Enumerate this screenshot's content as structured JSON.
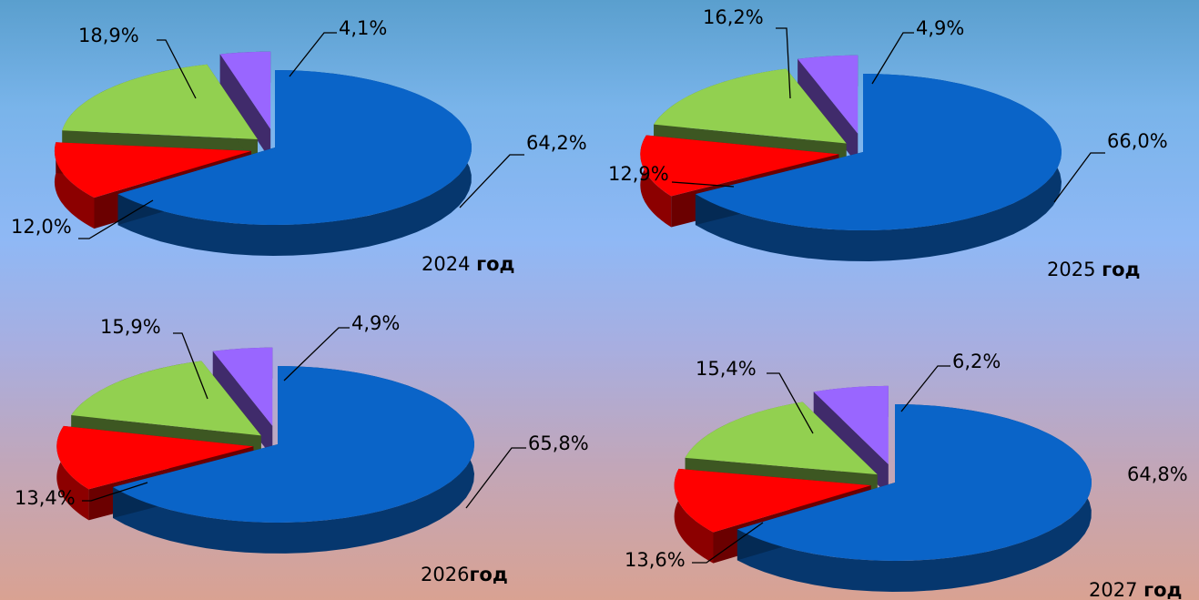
{
  "chart_data": [
    {
      "type": "pie",
      "year_label": "2024",
      "year_suffix": "год",
      "slices": [
        {
          "value": 64.2,
          "label": "64,2%",
          "color": "#0a64c8"
        },
        {
          "value": 12.0,
          "label": "12,0%",
          "color": "#ff0000"
        },
        {
          "value": 18.9,
          "label": "18,9%",
          "color": "#92d050"
        },
        {
          "value": 4.1,
          "label": "4,1%",
          "color": "#9966ff"
        }
      ]
    },
    {
      "type": "pie",
      "year_label": "2025",
      "year_suffix": "год",
      "slices": [
        {
          "value": 66.0,
          "label": "66,0%",
          "color": "#0a64c8"
        },
        {
          "value": 12.9,
          "label": "12,9%",
          "color": "#ff0000"
        },
        {
          "value": 16.2,
          "label": "16,2%",
          "color": "#92d050"
        },
        {
          "value": 4.9,
          "label": "4,9%",
          "color": "#9966ff"
        }
      ]
    },
    {
      "type": "pie",
      "year_label": "2026",
      "year_suffix": "год",
      "slices": [
        {
          "value": 65.8,
          "label": "65,8%",
          "color": "#0a64c8"
        },
        {
          "value": 13.4,
          "label": "13,4%",
          "color": "#ff0000"
        },
        {
          "value": 15.9,
          "label": "15,9%",
          "color": "#92d050"
        },
        {
          "value": 4.9,
          "label": "4,9%",
          "color": "#9966ff"
        }
      ]
    },
    {
      "type": "pie",
      "year_label": "2027",
      "year_suffix": "год",
      "slices": [
        {
          "value": 64.8,
          "label": "64,8%",
          "color": "#0a64c8"
        },
        {
          "value": 13.6,
          "label": "13,6%",
          "color": "#ff0000"
        },
        {
          "value": 15.4,
          "label": "15,4%",
          "color": "#92d050"
        },
        {
          "value": 6.2,
          "label": "6,2%",
          "color": "#9966ff"
        }
      ]
    }
  ]
}
